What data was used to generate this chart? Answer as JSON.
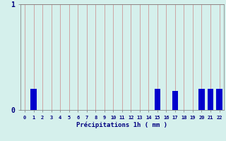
{
  "categories": [
    0,
    1,
    2,
    3,
    4,
    5,
    6,
    7,
    8,
    9,
    10,
    11,
    12,
    13,
    14,
    15,
    16,
    17,
    18,
    19,
    20,
    21,
    22
  ],
  "values": [
    0,
    0.2,
    0,
    0,
    0,
    0,
    0,
    0,
    0,
    0,
    0,
    0,
    0,
    0,
    0,
    0.2,
    0,
    0.18,
    0,
    0,
    0.2,
    0.2,
    0.2
  ],
  "bar_color": "#0000cc",
  "background_color": "#d5f0ec",
  "grid_color": "#cc9999",
  "xlabel": "Précipitations 1h ( mm )",
  "ylim": [
    0,
    1.0
  ],
  "xlim": [
    -0.5,
    22.5
  ],
  "xlabel_color": "#000080",
  "tick_color": "#000080",
  "yticks": [
    0,
    1
  ],
  "ytick_labels": [
    "0",
    "1"
  ],
  "figsize": [
    3.2,
    2.0
  ],
  "dpi": 100
}
